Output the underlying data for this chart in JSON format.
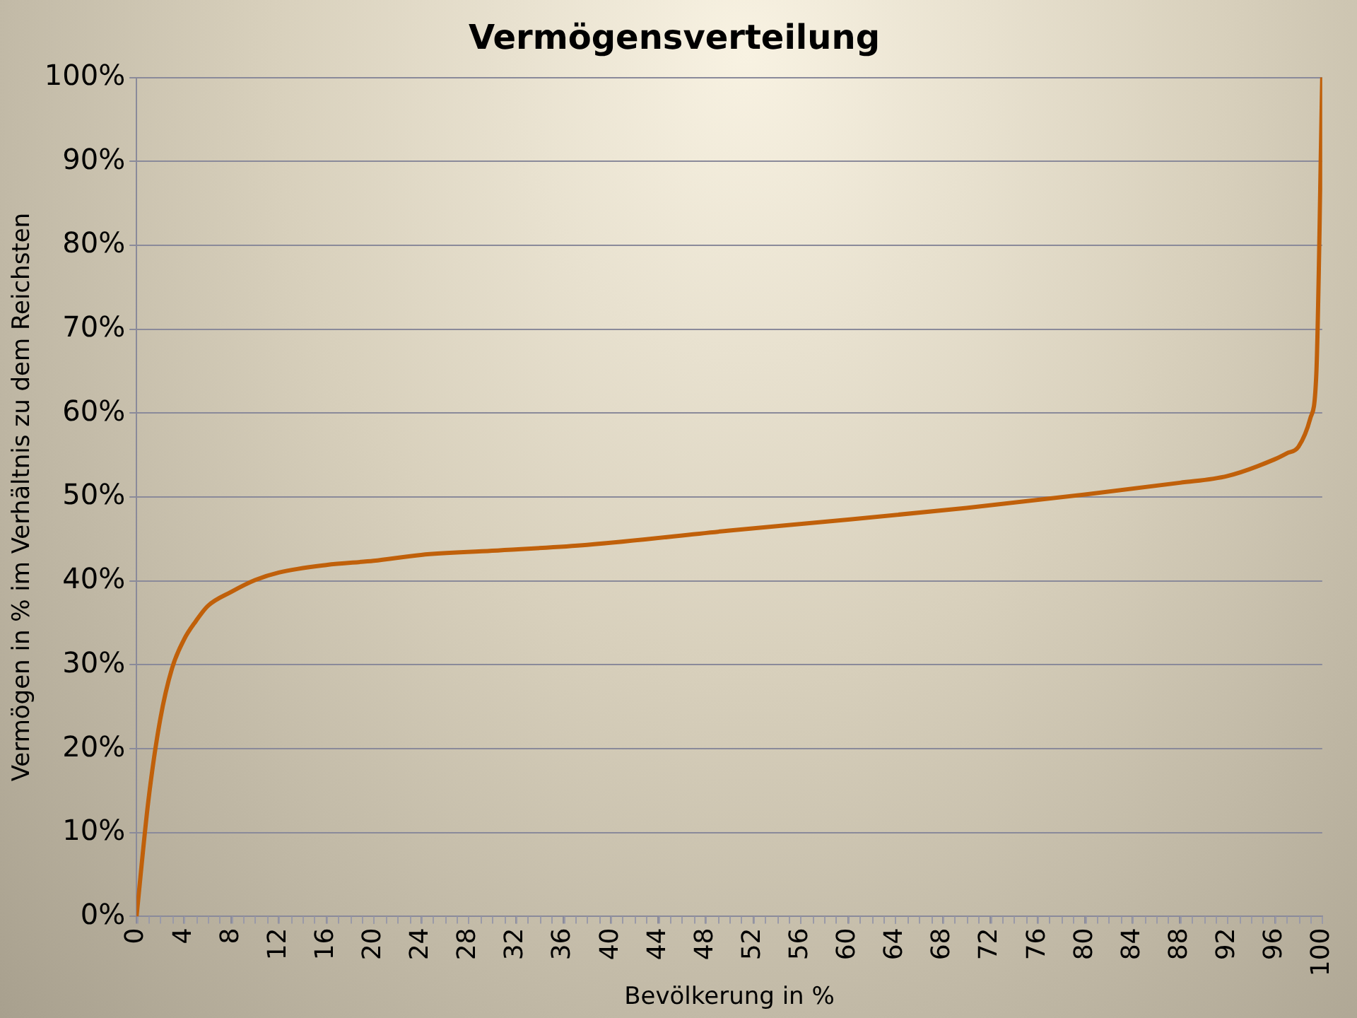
{
  "chart_data": {
    "type": "line",
    "title": "Vermögensverteilung",
    "xlabel": "Bevölkerung in %",
    "ylabel": "Vermögen in % im Verhältnis zu dem Reichsten",
    "x": [
      0,
      1,
      2,
      3,
      4,
      5,
      6,
      8,
      10,
      12,
      16,
      20,
      24,
      30,
      38,
      50,
      60,
      70,
      80,
      88,
      92,
      96,
      97,
      98,
      99,
      99.5,
      100
    ],
    "series": [
      {
        "color": "#c0600a",
        "values": [
          0,
          13.8,
          23.5,
          29.6,
          33,
          35.2,
          37,
          38.7,
          40.1,
          41,
          41.9,
          42.4,
          43.1,
          43.6,
          44.3,
          46,
          47.3,
          48.7,
          50.3,
          51.7,
          52.5,
          54.5,
          55.2,
          56,
          59.4,
          64.6,
          100
        ]
      }
    ],
    "xlim": [
      0,
      100
    ],
    "xticks": [
      0,
      4,
      8,
      12,
      16,
      20,
      24,
      28,
      32,
      36,
      40,
      44,
      48,
      52,
      56,
      60,
      64,
      68,
      72,
      76,
      80,
      84,
      88,
      92,
      96,
      100
    ],
    "ylim": [
      0,
      100
    ],
    "yticks": [
      {
        "value": 0,
        "label": "0%"
      },
      {
        "value": 10,
        "label": "10%"
      },
      {
        "value": 20,
        "label": "20%"
      },
      {
        "value": 30,
        "label": "30%"
      },
      {
        "value": 40,
        "label": "40%"
      },
      {
        "value": 50,
        "label": "50%"
      },
      {
        "value": 60,
        "label": "60%"
      },
      {
        "value": 70,
        "label": "70%"
      },
      {
        "value": 80,
        "label": "80%"
      },
      {
        "value": 90,
        "label": "90%"
      },
      {
        "value": 100,
        "label": "100%"
      }
    ],
    "grid": "y",
    "legend": false,
    "marker": "none",
    "line_style": "solid"
  }
}
